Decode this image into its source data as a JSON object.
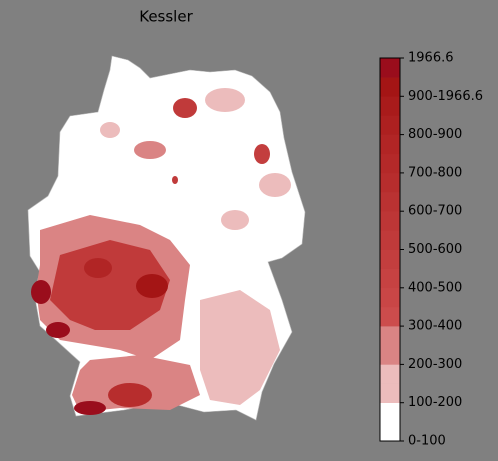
{
  "title": "Kessler",
  "colorbar": {
    "ticks": [
      "0-100",
      "100-200",
      "200-300",
      "300-400",
      "400-500",
      "500-600",
      "600-700",
      "700-800",
      "800-900",
      "900-1966.6",
      "1966.6"
    ],
    "colors": [
      "#ffffff",
      "#ffffff",
      "#ecbcbc",
      "#ecbcbc",
      "#da8484",
      "#da8484",
      "#cc4c4c",
      "#c94646",
      "#c64242",
      "#c33e3e",
      "#c03a3a",
      "#bd3636",
      "#ba3232",
      "#b72d2d",
      "#b42929",
      "#b12525",
      "#ad2020",
      "#a91b1b",
      "#a41515",
      "#9a0d1c"
    ]
  }
}
